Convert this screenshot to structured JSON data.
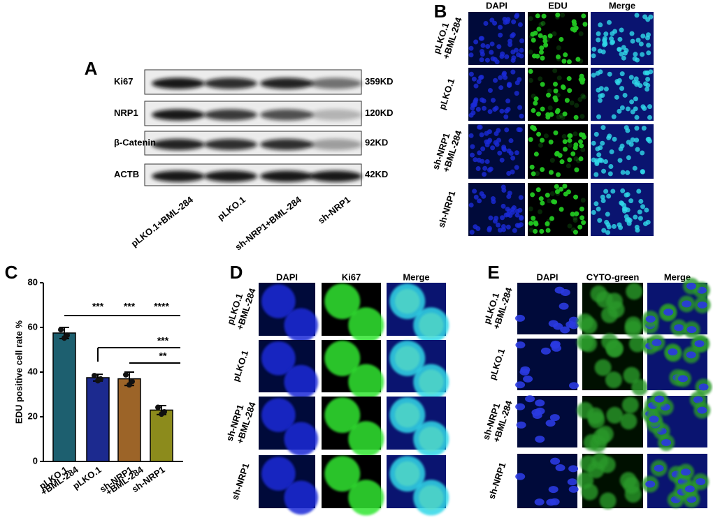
{
  "panel_labels": [
    "A",
    "B",
    "C",
    "D",
    "E"
  ],
  "blot": {
    "rows": [
      {
        "protein": "Ki67",
        "size": "359KD"
      },
      {
        "protein": "NRP1",
        "size": "120KD"
      },
      {
        "protein": "β-Catenin",
        "size": "92KD"
      },
      {
        "protein": "ACTB",
        "size": "42KD"
      }
    ],
    "lanes": [
      "pLKO.1+BML-284",
      "pLKO.1",
      "sh-NRP1+BML-284",
      "sh-NRP1"
    ]
  },
  "edu_images": {
    "columns": [
      "DAPI",
      "EDU",
      "Merge"
    ],
    "rows": [
      [
        "pLKO.1",
        "+BML-284"
      ],
      [
        "pLKO.1"
      ],
      [
        "sh-NRP1",
        "+BML-284"
      ],
      [
        "sh-NRP1"
      ]
    ]
  },
  "chart_data": {
    "type": "bar",
    "y_label": "EDU positive cell rate %",
    "categories": [
      [
        "pLKO.1",
        "+BML-284"
      ],
      [
        "pLKO.1"
      ],
      [
        "sh-NRP1",
        "+BML-284"
      ],
      [
        "sh-NRP1"
      ]
    ],
    "series": [
      {
        "values": [
          57.5,
          37.5,
          37,
          23
        ],
        "errors": [
          2.5,
          1.5,
          3,
          2
        ],
        "colors": [
          "#1d5f6f",
          "#1c2a8f",
          "#9c6428",
          "#8c8b1c"
        ]
      }
    ],
    "ylim": [
      0,
      80
    ],
    "yticks": [
      0,
      20,
      40,
      60,
      80
    ],
    "annotations": [
      "***",
      "***",
      "****",
      "***",
      "**"
    ]
  },
  "ki67_images": {
    "columns": [
      "DAPI",
      "Ki67",
      "Merge"
    ],
    "rows": [
      [
        "pLKO.1",
        "+BML-284"
      ],
      [
        "pLKO.1"
      ],
      [
        "sh-NRP1",
        "+BML-284"
      ],
      [
        "sh-NRP1"
      ]
    ]
  },
  "cyto_images": {
    "columns": [
      "DAPI",
      "CYTO-green",
      "Merge"
    ],
    "rows": [
      [
        "pLKO.1",
        "+BML-284"
      ],
      [
        "pLKO.1"
      ],
      [
        "sh-NRP1",
        "+BML-284"
      ],
      [
        "sh-NRP1"
      ]
    ]
  }
}
